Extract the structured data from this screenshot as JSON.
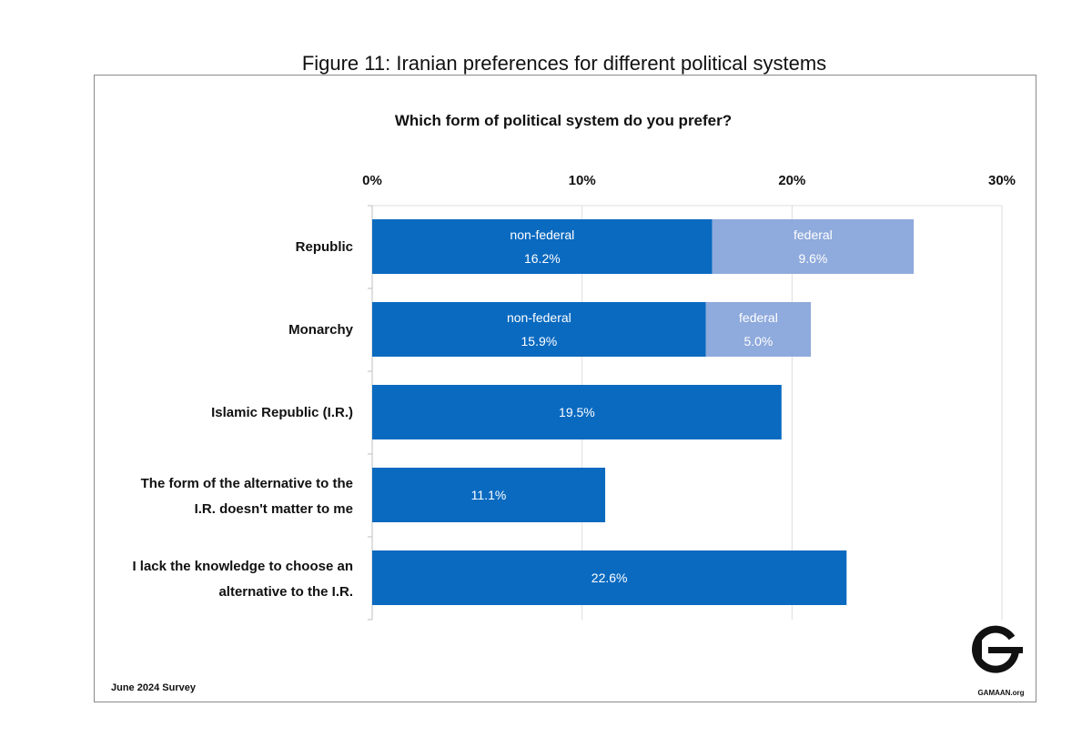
{
  "figure_caption": "Figure 11: Iranian preferences for different political systems",
  "footnote": "June  2024 Survey",
  "logo": {
    "text": "GAMAAN.org",
    "icon": "gamaan-logo-icon"
  },
  "colors": {
    "primary": "#0a6ac0",
    "secondary": "#8faadc",
    "grid": "#dddddd",
    "axis": "#bfbfbf"
  },
  "chart_data": {
    "type": "bar",
    "orientation": "horizontal",
    "stacked": true,
    "title": "Which form of political system do you prefer?",
    "xlim": [
      0,
      30
    ],
    "ticks": [
      0,
      10,
      20,
      30
    ],
    "tick_labels": [
      "0%",
      "10%",
      "20%",
      "30%"
    ],
    "grid": true,
    "categories": [
      [
        "Republic"
      ],
      [
        "Monarchy"
      ],
      [
        "Islamic Republic (I.R.)"
      ],
      [
        "The form of the alternative to the",
        "I.R. doesn't matter to me"
      ],
      [
        "I lack the knowledge to choose an",
        "alternative to the I.R."
      ]
    ],
    "series": [
      {
        "name": "non-federal",
        "color": "#0a6ac0",
        "values": [
          16.2,
          15.9,
          19.5,
          11.1,
          22.6
        ],
        "value_labels": [
          "16.2%",
          "15.9%",
          "19.5%",
          "11.1%",
          "22.6%"
        ],
        "show_name": [
          true,
          true,
          false,
          false,
          false
        ]
      },
      {
        "name": "federal",
        "color": "#8faadc",
        "values": [
          9.6,
          5.0,
          0,
          0,
          0
        ],
        "value_labels": [
          "9.6%",
          "5.0%",
          "",
          "",
          ""
        ],
        "show_name": [
          true,
          true,
          false,
          false,
          false
        ]
      }
    ]
  }
}
